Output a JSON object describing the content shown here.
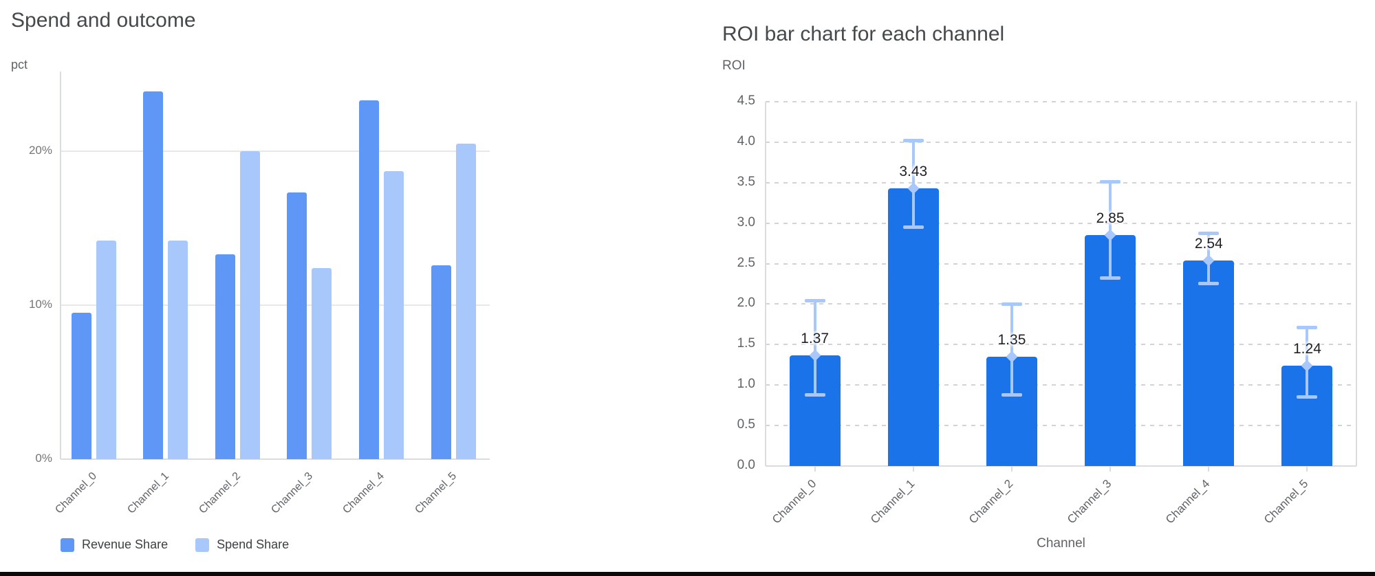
{
  "charts": {
    "left": {
      "title": "Spend and outcome",
      "unit_label": "pct",
      "legend": {
        "items": [
          {
            "label": "Revenue Share"
          },
          {
            "label": "Spend Share"
          }
        ]
      }
    },
    "right": {
      "title": "ROI bar chart for each channel",
      "unit_label": "ROI",
      "x_axis_title": "Channel"
    }
  },
  "colors": {
    "revenue_bar": "#5e97f6",
    "spend_bar": "#a8c7fa",
    "roi_bar": "#1a73e8",
    "error_bar": "#a8c7fa",
    "grid_line_solid": "#e8e8e8",
    "grid_line_dashed": "#d0d3d7",
    "axis_line": "#dadce0",
    "tick_text": "#757575",
    "axis_text": "#5f6368",
    "data_label_text": "#202124",
    "title_text": "#46494c",
    "bottom_divider": "#0b0b0b"
  },
  "chart_data": [
    {
      "type": "bar",
      "title": "Spend and outcome",
      "xlabel": "",
      "ylabel": "pct",
      "categories": [
        "Channel_0",
        "Channel_1",
        "Channel_2",
        "Channel_3",
        "Channel_4",
        "Channel_5"
      ],
      "series": [
        {
          "name": "Revenue Share",
          "color": "#5e97f6",
          "values": [
            9.5,
            23.9,
            13.3,
            17.3,
            23.3,
            12.6
          ]
        },
        {
          "name": "Spend Share",
          "color": "#a8c7fa",
          "values": [
            14.2,
            14.2,
            20.0,
            12.4,
            18.7,
            20.5
          ]
        }
      ],
      "y_ticks": [
        {
          "value": 0,
          "label": "0%"
        },
        {
          "value": 10,
          "label": "10%"
        },
        {
          "value": 20,
          "label": "20%"
        }
      ],
      "ylim": [
        0,
        25.2
      ],
      "grid": "solid",
      "legend_position": "bottom-left"
    },
    {
      "type": "bar",
      "title": "ROI bar chart for each channel",
      "xlabel": "Channel",
      "ylabel": "ROI",
      "categories": [
        "Channel_0",
        "Channel_1",
        "Channel_2",
        "Channel_3",
        "Channel_4",
        "Channel_5"
      ],
      "values": [
        1.37,
        3.43,
        1.35,
        2.85,
        2.54,
        1.24
      ],
      "data_labels": [
        "1.37",
        "3.43",
        "1.35",
        "2.85",
        "2.54",
        "1.24"
      ],
      "error_low": [
        0.88,
        2.95,
        0.88,
        2.32,
        2.25,
        0.85
      ],
      "error_high": [
        2.04,
        4.02,
        2.0,
        3.51,
        2.87,
        1.71
      ],
      "y_ticks": [
        {
          "value": 0.0,
          "label": "0.0"
        },
        {
          "value": 0.5,
          "label": "0.5"
        },
        {
          "value": 1.0,
          "label": "1.0"
        },
        {
          "value": 1.5,
          "label": "1.5"
        },
        {
          "value": 2.0,
          "label": "2.0"
        },
        {
          "value": 2.5,
          "label": "2.5"
        },
        {
          "value": 3.0,
          "label": "3.0"
        },
        {
          "value": 3.5,
          "label": "3.5"
        },
        {
          "value": 4.0,
          "label": "4.0"
        },
        {
          "value": 4.5,
          "label": "4.5"
        }
      ],
      "ylim": [
        0,
        4.5
      ],
      "grid": "dashed",
      "legend_position": "none"
    }
  ]
}
